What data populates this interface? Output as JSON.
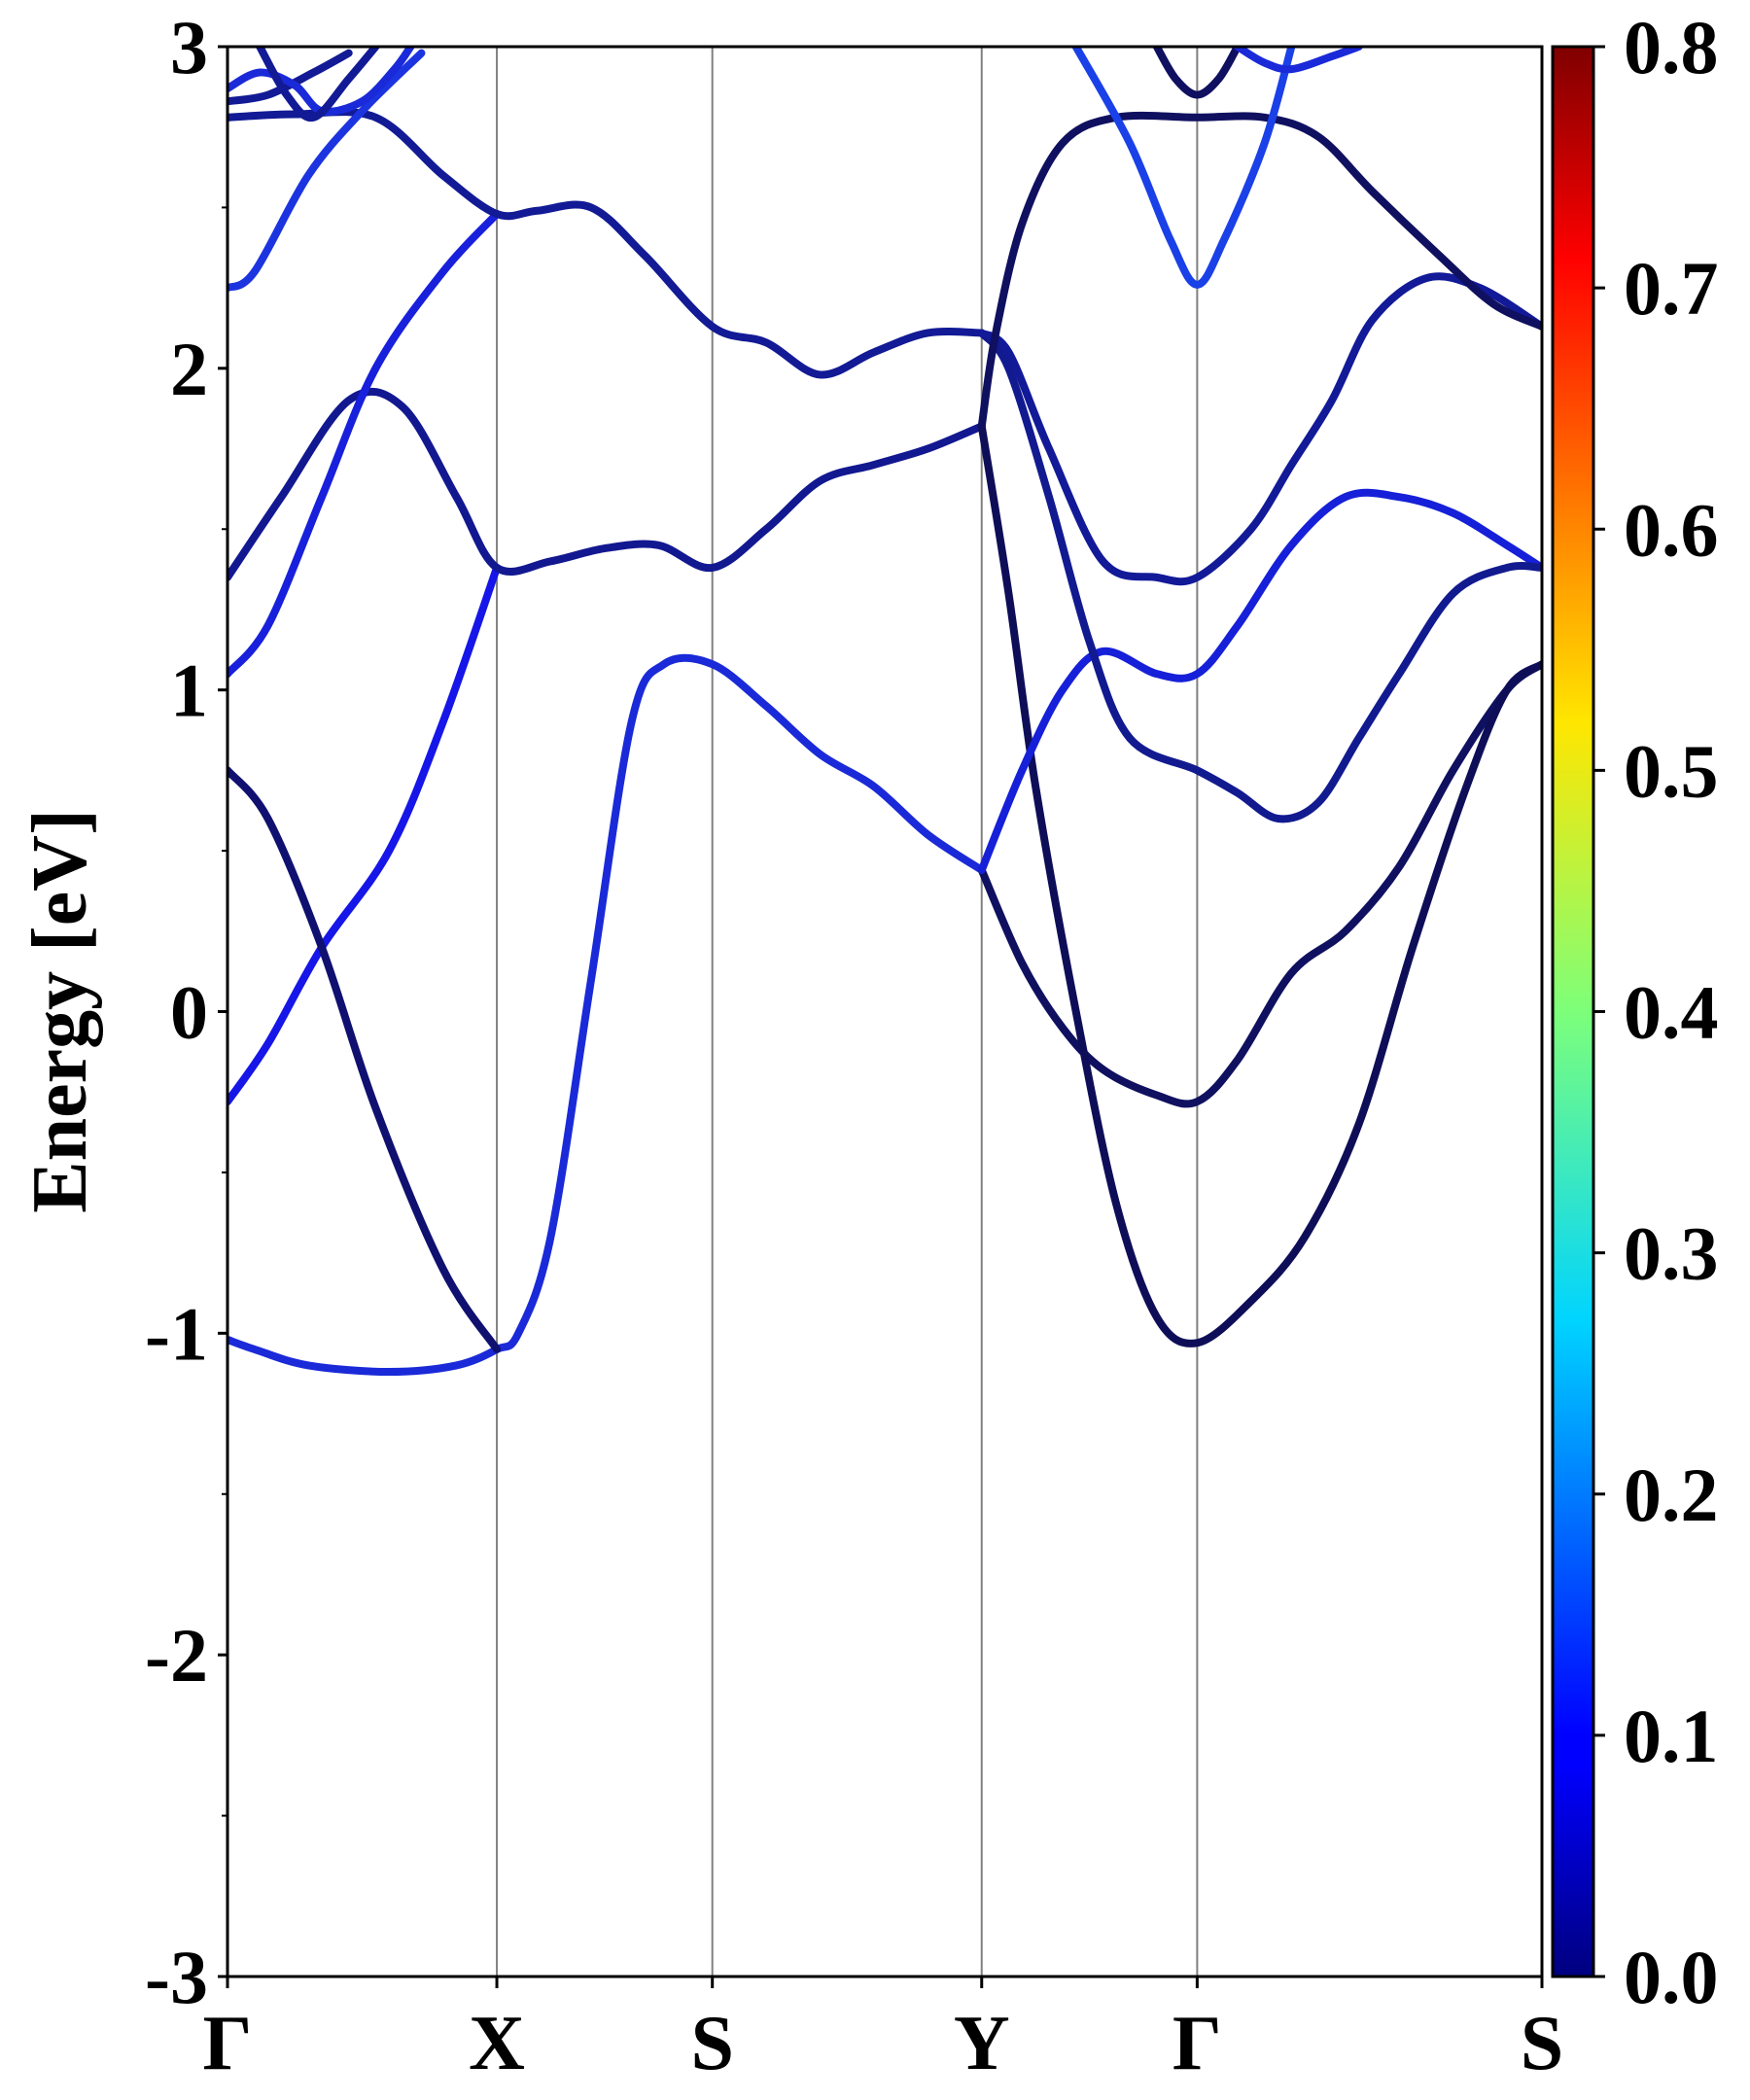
{
  "chart_data": {
    "type": "line",
    "title": "",
    "ylabel": "Energy [eV]",
    "xlabel": "",
    "ylim": [
      -3,
      3
    ],
    "y_ticks": [
      {
        "value": 3,
        "label": "3"
      },
      {
        "value": 2,
        "label": "2"
      },
      {
        "value": 1,
        "label": "1"
      },
      {
        "value": 0,
        "label": "0"
      },
      {
        "value": -1,
        "label": "-1"
      },
      {
        "value": -2,
        "label": "-2"
      },
      {
        "value": -3,
        "label": "-3"
      }
    ],
    "y_minor_ticks": [
      2.5,
      1.5,
      0.5,
      -0.5,
      -1.5,
      -2.5
    ],
    "k_path": [
      {
        "label": "Γ",
        "pos": 0.0
      },
      {
        "label": "X",
        "pos": 1.0
      },
      {
        "label": "S",
        "pos": 1.8
      },
      {
        "label": "Y",
        "pos": 2.8
      },
      {
        "label": "Γ",
        "pos": 3.6
      },
      {
        "label": "S",
        "pos": 4.88
      }
    ],
    "vertical_lines_at": [
      1.0,
      1.8,
      2.8,
      3.6
    ],
    "colorbar": {
      "colormap": "jet",
      "range": [
        0.0,
        0.8
      ],
      "tick_labels": [
        "0.0",
        "0.1",
        "0.2",
        "0.3",
        "0.4",
        "0.5",
        "0.6",
        "0.7",
        "0.8"
      ]
    },
    "series": [
      {
        "color_value": 0.1,
        "color": "#1a2ad8",
        "points": [
          [
            0,
            -1.02
          ],
          [
            0.1,
            -1.05
          ],
          [
            0.3,
            -1.1
          ],
          [
            0.6,
            -1.12
          ],
          [
            0.85,
            -1.1
          ],
          [
            1.0,
            -1.05
          ],
          [
            1.08,
            -1.0
          ],
          [
            1.2,
            -0.7
          ],
          [
            1.35,
            0.1
          ],
          [
            1.5,
            0.9
          ],
          [
            1.62,
            1.08
          ],
          [
            1.8,
            1.08
          ],
          [
            2.0,
            0.95
          ],
          [
            2.2,
            0.8
          ],
          [
            2.4,
            0.7
          ],
          [
            2.6,
            0.55
          ],
          [
            2.8,
            0.44
          ]
        ]
      },
      {
        "color_value": 0.1,
        "color": "#1616e8",
        "points": [
          [
            0,
            -0.28
          ],
          [
            0.15,
            -0.1
          ],
          [
            0.35,
            0.2
          ],
          [
            0.6,
            0.5
          ],
          [
            0.8,
            0.9
          ],
          [
            1.0,
            1.38
          ]
        ]
      },
      {
        "color_value": 0.03,
        "color": "#101070",
        "points": [
          [
            0,
            0.75
          ],
          [
            0.15,
            0.6
          ],
          [
            0.35,
            0.2
          ],
          [
            0.55,
            -0.3
          ],
          [
            0.8,
            -0.8
          ],
          [
            1.0,
            -1.05
          ]
        ]
      },
      {
        "color_value": 0.05,
        "color": "#121890",
        "points": [
          [
            0,
            1.35
          ],
          [
            0.2,
            1.6
          ],
          [
            0.45,
            1.9
          ],
          [
            0.65,
            1.88
          ],
          [
            0.85,
            1.6
          ],
          [
            1.0,
            1.38
          ],
          [
            1.2,
            1.4
          ],
          [
            1.4,
            1.44
          ],
          [
            1.6,
            1.45
          ],
          [
            1.8,
            1.38
          ],
          [
            2.0,
            1.5
          ],
          [
            2.2,
            1.65
          ],
          [
            2.4,
            1.7
          ],
          [
            2.6,
            1.75
          ],
          [
            2.8,
            1.82
          ]
        ]
      },
      {
        "color_value": 0.1,
        "color": "#1820dc",
        "points": [
          [
            0,
            1.05
          ],
          [
            0.15,
            1.2
          ],
          [
            0.35,
            1.6
          ],
          [
            0.55,
            2.0
          ],
          [
            0.8,
            2.3
          ],
          [
            1.0,
            2.48
          ]
        ]
      },
      {
        "color_value": 0.05,
        "color": "#121a95",
        "points": [
          [
            0,
            2.78
          ],
          [
            0.25,
            2.79
          ],
          [
            0.55,
            2.78
          ],
          [
            0.8,
            2.6
          ],
          [
            1.0,
            2.48
          ],
          [
            1.15,
            2.49
          ],
          [
            1.35,
            2.5
          ],
          [
            1.55,
            2.35
          ],
          [
            1.8,
            2.13
          ],
          [
            2.0,
            2.08
          ],
          [
            2.2,
            1.98
          ],
          [
            2.4,
            2.05
          ],
          [
            2.6,
            2.11
          ],
          [
            2.8,
            2.11
          ]
        ]
      },
      {
        "color_value": 0.12,
        "color": "#1c34e0",
        "points": [
          [
            0,
            2.25
          ],
          [
            0.1,
            2.3
          ],
          [
            0.3,
            2.6
          ],
          [
            0.5,
            2.8
          ],
          [
            0.72,
            2.98
          ]
        ]
      },
      {
        "color_value": 0.03,
        "color": "#101060",
        "points": [
          [
            2.8,
            0.44
          ],
          [
            2.95,
            0.15
          ],
          [
            3.1,
            -0.05
          ],
          [
            3.25,
            -0.18
          ],
          [
            3.45,
            -0.26
          ],
          [
            3.6,
            -0.28
          ],
          [
            3.75,
            -0.15
          ],
          [
            3.95,
            0.12
          ],
          [
            4.15,
            0.25
          ],
          [
            4.35,
            0.45
          ],
          [
            4.55,
            0.75
          ],
          [
            4.75,
            1.0
          ],
          [
            4.88,
            1.08
          ]
        ]
      },
      {
        "color_value": 0.02,
        "color": "#0e0e58",
        "points": [
          [
            2.8,
            1.82
          ],
          [
            2.9,
            1.3
          ],
          [
            3.0,
            0.7
          ],
          [
            3.15,
            0.0
          ],
          [
            3.3,
            -0.6
          ],
          [
            3.45,
            -0.95
          ],
          [
            3.6,
            -1.03
          ],
          [
            3.8,
            -0.9
          ],
          [
            4.0,
            -0.7
          ],
          [
            4.2,
            -0.35
          ],
          [
            4.4,
            0.2
          ],
          [
            4.6,
            0.7
          ],
          [
            4.75,
            1.0
          ],
          [
            4.88,
            1.08
          ]
        ]
      },
      {
        "color_value": 0.1,
        "color": "#1620d8",
        "points": [
          [
            2.8,
            0.44
          ],
          [
            2.95,
            0.75
          ],
          [
            3.1,
            1.0
          ],
          [
            3.25,
            1.12
          ],
          [
            3.45,
            1.05
          ],
          [
            3.6,
            1.05
          ],
          [
            3.75,
            1.2
          ],
          [
            3.95,
            1.45
          ],
          [
            4.15,
            1.6
          ],
          [
            4.35,
            1.6
          ],
          [
            4.55,
            1.55
          ],
          [
            4.75,
            1.45
          ],
          [
            4.88,
            1.38
          ]
        ]
      },
      {
        "color_value": 0.05,
        "color": "#121a90",
        "points": [
          [
            2.8,
            2.11
          ],
          [
            2.9,
            2.0
          ],
          [
            3.05,
            1.6
          ],
          [
            3.2,
            1.15
          ],
          [
            3.35,
            0.85
          ],
          [
            3.6,
            0.75
          ],
          [
            3.75,
            0.68
          ],
          [
            3.9,
            0.6
          ],
          [
            4.05,
            0.65
          ],
          [
            4.2,
            0.85
          ],
          [
            4.35,
            1.05
          ],
          [
            4.55,
            1.3
          ],
          [
            4.75,
            1.38
          ],
          [
            4.88,
            1.38
          ]
        ]
      },
      {
        "color_value": 0.06,
        "color": "#121a98",
        "points": [
          [
            2.8,
            2.11
          ],
          [
            2.9,
            2.05
          ],
          [
            3.05,
            1.75
          ],
          [
            3.25,
            1.4
          ],
          [
            3.45,
            1.35
          ],
          [
            3.6,
            1.35
          ],
          [
            3.8,
            1.5
          ],
          [
            3.95,
            1.7
          ],
          [
            4.1,
            1.9
          ],
          [
            4.25,
            2.15
          ],
          [
            4.45,
            2.28
          ],
          [
            4.65,
            2.25
          ],
          [
            4.88,
            2.13
          ]
        ]
      },
      {
        "color_value": 0.03,
        "color": "#101060",
        "points": [
          [
            2.8,
            1.82
          ],
          [
            2.85,
            2.1
          ],
          [
            2.95,
            2.45
          ],
          [
            3.1,
            2.7
          ],
          [
            3.3,
            2.78
          ],
          [
            3.6,
            2.78
          ],
          [
            3.85,
            2.78
          ],
          [
            4.05,
            2.72
          ],
          [
            4.25,
            2.55
          ],
          [
            4.5,
            2.35
          ],
          [
            4.7,
            2.2
          ],
          [
            4.88,
            2.13
          ]
        ]
      },
      {
        "color_value": 0.15,
        "color": "#1a40e8",
        "points": [
          [
            3.15,
            3.0
          ],
          [
            3.35,
            2.7
          ],
          [
            3.5,
            2.4
          ],
          [
            3.6,
            2.26
          ],
          [
            3.7,
            2.4
          ],
          [
            3.85,
            2.7
          ],
          [
            3.95,
            3.0
          ]
        ]
      },
      {
        "color_value": 0.02,
        "color": "#101060",
        "points": [
          [
            3.45,
            3.0
          ],
          [
            3.52,
            2.9
          ],
          [
            3.6,
            2.85
          ],
          [
            3.68,
            2.9
          ],
          [
            3.75,
            3.0
          ]
        ]
      },
      {
        "color_value": 0.1,
        "color": "#1a2ad8",
        "points": [
          [
            3.75,
            3.0
          ],
          [
            3.85,
            2.95
          ],
          [
            3.95,
            2.93
          ],
          [
            4.1,
            2.97
          ],
          [
            4.2,
            3.0
          ]
        ]
      },
      {
        "color_value": 0.05,
        "color": "#121a95",
        "points": [
          [
            0,
            2.83
          ],
          [
            0.15,
            2.85
          ],
          [
            0.32,
            2.92
          ],
          [
            0.45,
            2.98
          ]
        ]
      },
      {
        "color_value": 0.1,
        "color": "#1a2ad8",
        "points": [
          [
            0,
            2.87
          ],
          [
            0.12,
            2.92
          ],
          [
            0.25,
            2.88
          ],
          [
            0.35,
            2.8
          ],
          [
            0.5,
            2.83
          ],
          [
            0.62,
            2.93
          ],
          [
            0.68,
            3.0
          ]
        ]
      },
      {
        "color_value": 0.05,
        "color": "#121a95",
        "points": [
          [
            0.12,
            3.0
          ],
          [
            0.22,
            2.85
          ],
          [
            0.32,
            2.78
          ],
          [
            0.45,
            2.9
          ],
          [
            0.55,
            3.0
          ]
        ]
      }
    ]
  }
}
